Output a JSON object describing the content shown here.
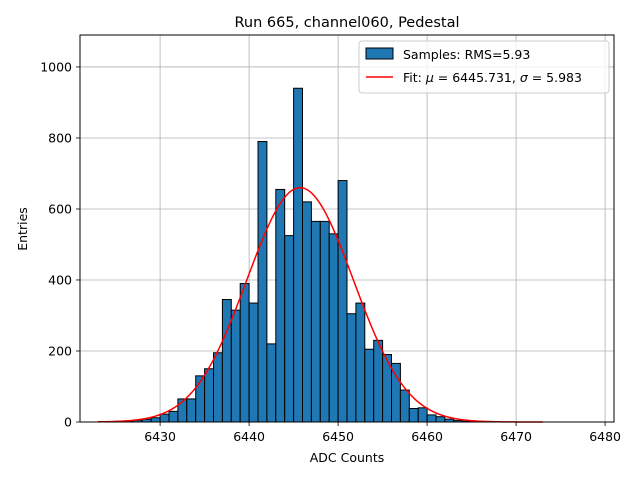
{
  "chart_data": {
    "type": "bar",
    "title": "Run 665, channel060, Pedestal",
    "xlabel": "ADC Counts",
    "ylabel": "Entries",
    "xlim": [
      6421,
      6481
    ],
    "ylim": [
      0,
      1090
    ],
    "grid": true,
    "legend_position": "top-right",
    "x_ticks": [
      6430,
      6440,
      6450,
      6460,
      6470,
      6480
    ],
    "y_ticks": [
      0,
      200,
      400,
      600,
      800,
      1000
    ],
    "bin_width": 1,
    "histogram": {
      "name": "Samples: RMS=5.93",
      "color": "#1f77b4",
      "edge_color": "#000000",
      "bins": [
        {
          "x": 6424,
          "y": 1
        },
        {
          "x": 6425,
          "y": 2
        },
        {
          "x": 6426,
          "y": 3
        },
        {
          "x": 6427,
          "y": 5
        },
        {
          "x": 6428,
          "y": 8
        },
        {
          "x": 6429,
          "y": 12
        },
        {
          "x": 6430,
          "y": 22
        },
        {
          "x": 6431,
          "y": 30
        },
        {
          "x": 6432,
          "y": 65
        },
        {
          "x": 6433,
          "y": 65
        },
        {
          "x": 6434,
          "y": 130
        },
        {
          "x": 6435,
          "y": 150
        },
        {
          "x": 6436,
          "y": 195
        },
        {
          "x": 6437,
          "y": 345
        },
        {
          "x": 6438,
          "y": 315
        },
        {
          "x": 6439,
          "y": 390
        },
        {
          "x": 6440,
          "y": 335
        },
        {
          "x": 6441,
          "y": 790
        },
        {
          "x": 6442,
          "y": 220
        },
        {
          "x": 6443,
          "y": 655
        },
        {
          "x": 6444,
          "y": 525
        },
        {
          "x": 6445,
          "y": 940
        },
        {
          "x": 6446,
          "y": 620
        },
        {
          "x": 6447,
          "y": 565
        },
        {
          "x": 6448,
          "y": 565
        },
        {
          "x": 6449,
          "y": 530
        },
        {
          "x": 6450,
          "y": 680
        },
        {
          "x": 6451,
          "y": 305
        },
        {
          "x": 6452,
          "y": 335
        },
        {
          "x": 6453,
          "y": 205
        },
        {
          "x": 6454,
          "y": 230
        },
        {
          "x": 6455,
          "y": 190
        },
        {
          "x": 6456,
          "y": 165
        },
        {
          "x": 6457,
          "y": 90
        },
        {
          "x": 6458,
          "y": 38
        },
        {
          "x": 6459,
          "y": 40
        },
        {
          "x": 6460,
          "y": 20
        },
        {
          "x": 6461,
          "y": 15
        },
        {
          "x": 6462,
          "y": 8
        },
        {
          "x": 6463,
          "y": 4
        },
        {
          "x": 6464,
          "y": 2
        },
        {
          "x": 6465,
          "y": 1
        }
      ]
    },
    "fit": {
      "legend_prefix": "Fit: ",
      "mu_symbol": "μ",
      "equals_mu": " = 6445.731, ",
      "sigma_symbol": "σ",
      "equals_sigma": " = 5.983",
      "color": "#ff0000",
      "mu": 6445.731,
      "sigma": 5.983,
      "amplitude": 660,
      "x_range": [
        6423,
        6473
      ]
    }
  }
}
